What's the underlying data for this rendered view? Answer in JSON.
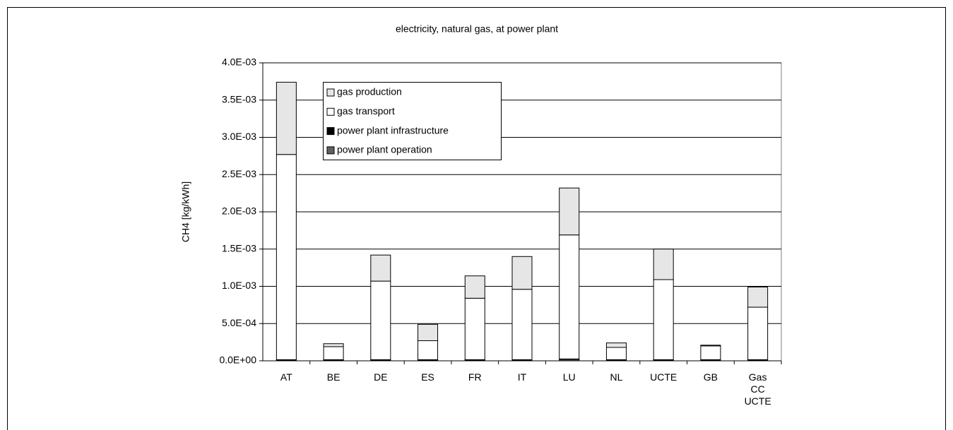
{
  "chart_data": {
    "type": "stacked_bar",
    "title": "electricity, natural gas, at power plant",
    "y_label": "CH4 [kg/kWh]",
    "categories": [
      "AT",
      "BE",
      "DE",
      "ES",
      "FR",
      "IT",
      "LU",
      "NL",
      "UCTE",
      "GB",
      "Gas CC UCTE"
    ],
    "series": [
      {
        "name": "power plant operation",
        "color": "#606060",
        "values": [
          1e-05,
          1e-05,
          1e-05,
          1e-05,
          1e-05,
          1e-05,
          2e-05,
          1e-05,
          1e-05,
          1e-05,
          1e-05
        ]
      },
      {
        "name": "power plant infrastructure",
        "color": "#000000",
        "values": [
          5e-06,
          5e-06,
          5e-06,
          5e-06,
          5e-06,
          5e-06,
          5e-06,
          5e-06,
          5e-06,
          5e-06,
          5e-06
        ]
      },
      {
        "name": "gas transport",
        "color": "#ffffff",
        "values": [
          0.002755,
          0.000175,
          0.001055,
          0.000255,
          0.000825,
          0.000945,
          0.001665,
          0.000165,
          0.001075,
          0.000185,
          0.000705
        ]
      },
      {
        "name": "gas production",
        "color": "#e6e6e6",
        "values": [
          0.00097,
          4e-05,
          0.00035,
          0.00022,
          0.0003,
          0.00044,
          0.00063,
          6e-05,
          0.00041,
          1e-05,
          0.00027
        ]
      }
    ],
    "ylim": [
      0,
      0.004
    ],
    "yticks": [
      {
        "value": 0,
        "label": "0.0E+00"
      },
      {
        "value": 0.0005,
        "label": "5.0E-04"
      },
      {
        "value": 0.001,
        "label": "1.0E-03"
      },
      {
        "value": 0.0015,
        "label": "1.5E-03"
      },
      {
        "value": 0.002,
        "label": "2.0E-03"
      },
      {
        "value": 0.0025,
        "label": "2.5E-03"
      },
      {
        "value": 0.003,
        "label": "3.0E-03"
      },
      {
        "value": 0.0035,
        "label": "3.5E-03"
      },
      {
        "value": 0.004,
        "label": "4.0E-03"
      }
    ],
    "grid": true
  }
}
